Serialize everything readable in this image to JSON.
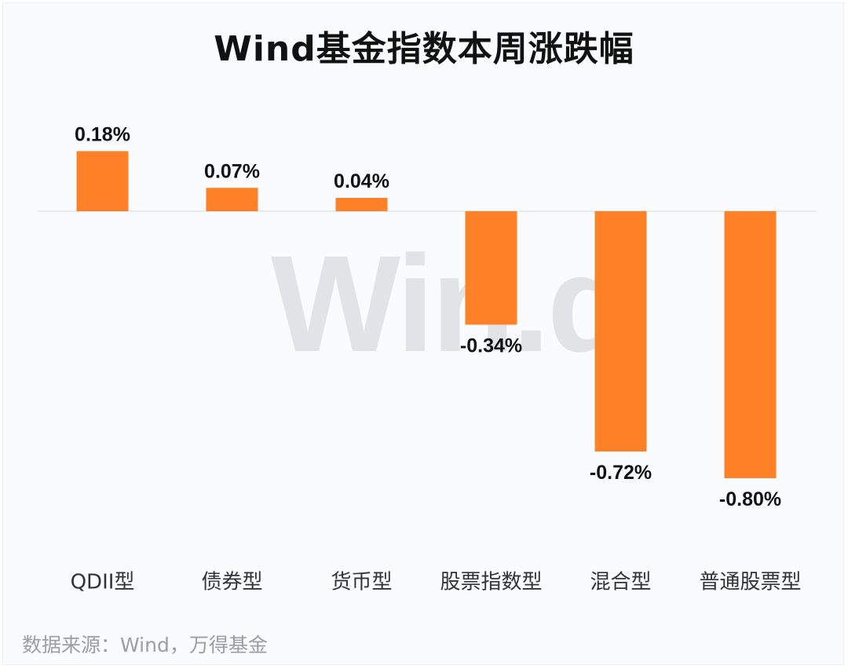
{
  "chart_data": {
    "type": "bar",
    "title": "Wind基金指数本周涨跌幅",
    "categories": [
      "QDII型",
      "债券型",
      "货币型",
      "股票指数型",
      "混合型",
      "普通股票型"
    ],
    "values": [
      0.18,
      0.07,
      0.04,
      -0.34,
      -0.72,
      -0.8
    ],
    "value_labels": [
      "0.18%",
      "0.07%",
      "0.04%",
      "-0.34%",
      "-0.72%",
      "-0.80%"
    ],
    "unit": "%",
    "ylim": [
      -0.9,
      0.3
    ],
    "grid": false,
    "legend": "none",
    "bar_color": "#fe8128",
    "xlabel": "",
    "ylabel": ""
  },
  "watermark": "Win.d",
  "source": "数据来源：Wind，万得基金"
}
